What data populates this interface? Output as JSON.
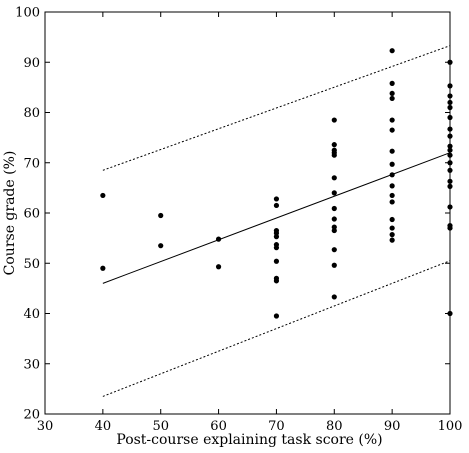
{
  "chart_data": {
    "type": "scatter",
    "title": "",
    "xlabel": "Post-course explaining task score (%)",
    "ylabel": "Course grade (%)",
    "xlim": [
      30,
      100
    ],
    "ylim": [
      20,
      100
    ],
    "xticks": [
      30,
      40,
      50,
      60,
      70,
      80,
      90,
      100
    ],
    "yticks": [
      20,
      30,
      40,
      50,
      60,
      70,
      80,
      90,
      100
    ],
    "grid": false,
    "points": [
      {
        "x": 40,
        "y": 63.5
      },
      {
        "x": 40,
        "y": 49
      },
      {
        "x": 50,
        "y": 59.5
      },
      {
        "x": 50,
        "y": 53.5
      },
      {
        "x": 60,
        "y": 54.8
      },
      {
        "x": 60,
        "y": 49.3
      },
      {
        "x": 70,
        "y": 62.8
      },
      {
        "x": 70,
        "y": 61.5
      },
      {
        "x": 70,
        "y": 56.5
      },
      {
        "x": 70,
        "y": 56
      },
      {
        "x": 70,
        "y": 55.3
      },
      {
        "x": 70,
        "y": 53.7
      },
      {
        "x": 70,
        "y": 53.1
      },
      {
        "x": 70,
        "y": 50.4
      },
      {
        "x": 70,
        "y": 47
      },
      {
        "x": 70,
        "y": 46.5
      },
      {
        "x": 70,
        "y": 39.5
      },
      {
        "x": 80,
        "y": 78.5
      },
      {
        "x": 80,
        "y": 73.6
      },
      {
        "x": 80,
        "y": 72.5
      },
      {
        "x": 80,
        "y": 72
      },
      {
        "x": 80,
        "y": 71.5
      },
      {
        "x": 80,
        "y": 67
      },
      {
        "x": 80,
        "y": 64
      },
      {
        "x": 80,
        "y": 60.9
      },
      {
        "x": 80,
        "y": 58.8
      },
      {
        "x": 80,
        "y": 57.2
      },
      {
        "x": 80,
        "y": 56.5
      },
      {
        "x": 80,
        "y": 52.7
      },
      {
        "x": 80,
        "y": 49.6
      },
      {
        "x": 80,
        "y": 43.3
      },
      {
        "x": 90,
        "y": 92.3
      },
      {
        "x": 90,
        "y": 85.8
      },
      {
        "x": 90,
        "y": 83.8
      },
      {
        "x": 90,
        "y": 82.8
      },
      {
        "x": 90,
        "y": 78.5
      },
      {
        "x": 90,
        "y": 76.5
      },
      {
        "x": 90,
        "y": 72.3
      },
      {
        "x": 90,
        "y": 69.7
      },
      {
        "x": 90,
        "y": 67.6
      },
      {
        "x": 90,
        "y": 65.4
      },
      {
        "x": 90,
        "y": 63.5
      },
      {
        "x": 90,
        "y": 62.2
      },
      {
        "x": 90,
        "y": 58.7
      },
      {
        "x": 90,
        "y": 57
      },
      {
        "x": 90,
        "y": 55.7
      },
      {
        "x": 90,
        "y": 54.6
      },
      {
        "x": 100,
        "y": 90
      },
      {
        "x": 100,
        "y": 85.3
      },
      {
        "x": 100,
        "y": 83.3
      },
      {
        "x": 100,
        "y": 82
      },
      {
        "x": 100,
        "y": 81
      },
      {
        "x": 100,
        "y": 79
      },
      {
        "x": 100,
        "y": 76.7
      },
      {
        "x": 100,
        "y": 75.3
      },
      {
        "x": 100,
        "y": 73.3
      },
      {
        "x": 100,
        "y": 72.5
      },
      {
        "x": 100,
        "y": 71.5
      },
      {
        "x": 100,
        "y": 70
      },
      {
        "x": 100,
        "y": 68.5
      },
      {
        "x": 100,
        "y": 66.3
      },
      {
        "x": 100,
        "y": 65.3
      },
      {
        "x": 100,
        "y": 61.2
      },
      {
        "x": 100,
        "y": 57.5
      },
      {
        "x": 100,
        "y": 57
      },
      {
        "x": 100,
        "y": 40
      }
    ],
    "fit_line": [
      {
        "x": 40,
        "y": 46
      },
      {
        "x": 100,
        "y": 72
      }
    ],
    "upper_bound": [
      {
        "x": 40,
        "y": 68.5
      },
      {
        "x": 100,
        "y": 93.3
      }
    ],
    "lower_bound": [
      {
        "x": 40,
        "y": 23.5
      },
      {
        "x": 100,
        "y": 50.5
      }
    ]
  }
}
